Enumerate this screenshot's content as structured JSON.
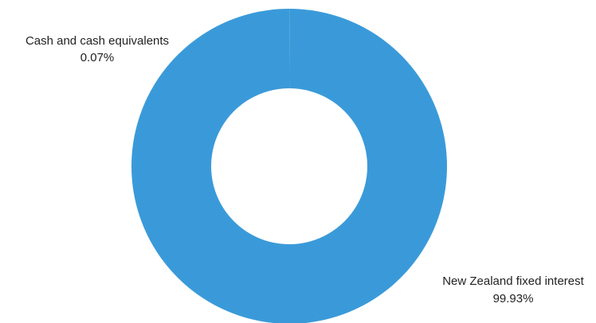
{
  "chart_data": {
    "type": "pie",
    "variant": "donut",
    "title": "",
    "slices": [
      {
        "label": "Cash and cash equivalents",
        "percent_label": "0.07%",
        "value": 0.07,
        "color": "#3a9ad9"
      },
      {
        "label": "New Zealand fixed interest",
        "percent_label": "99.93%",
        "value": 99.93,
        "color": "#3a9ad9"
      }
    ],
    "legend": "none",
    "data_labels": "outside"
  }
}
